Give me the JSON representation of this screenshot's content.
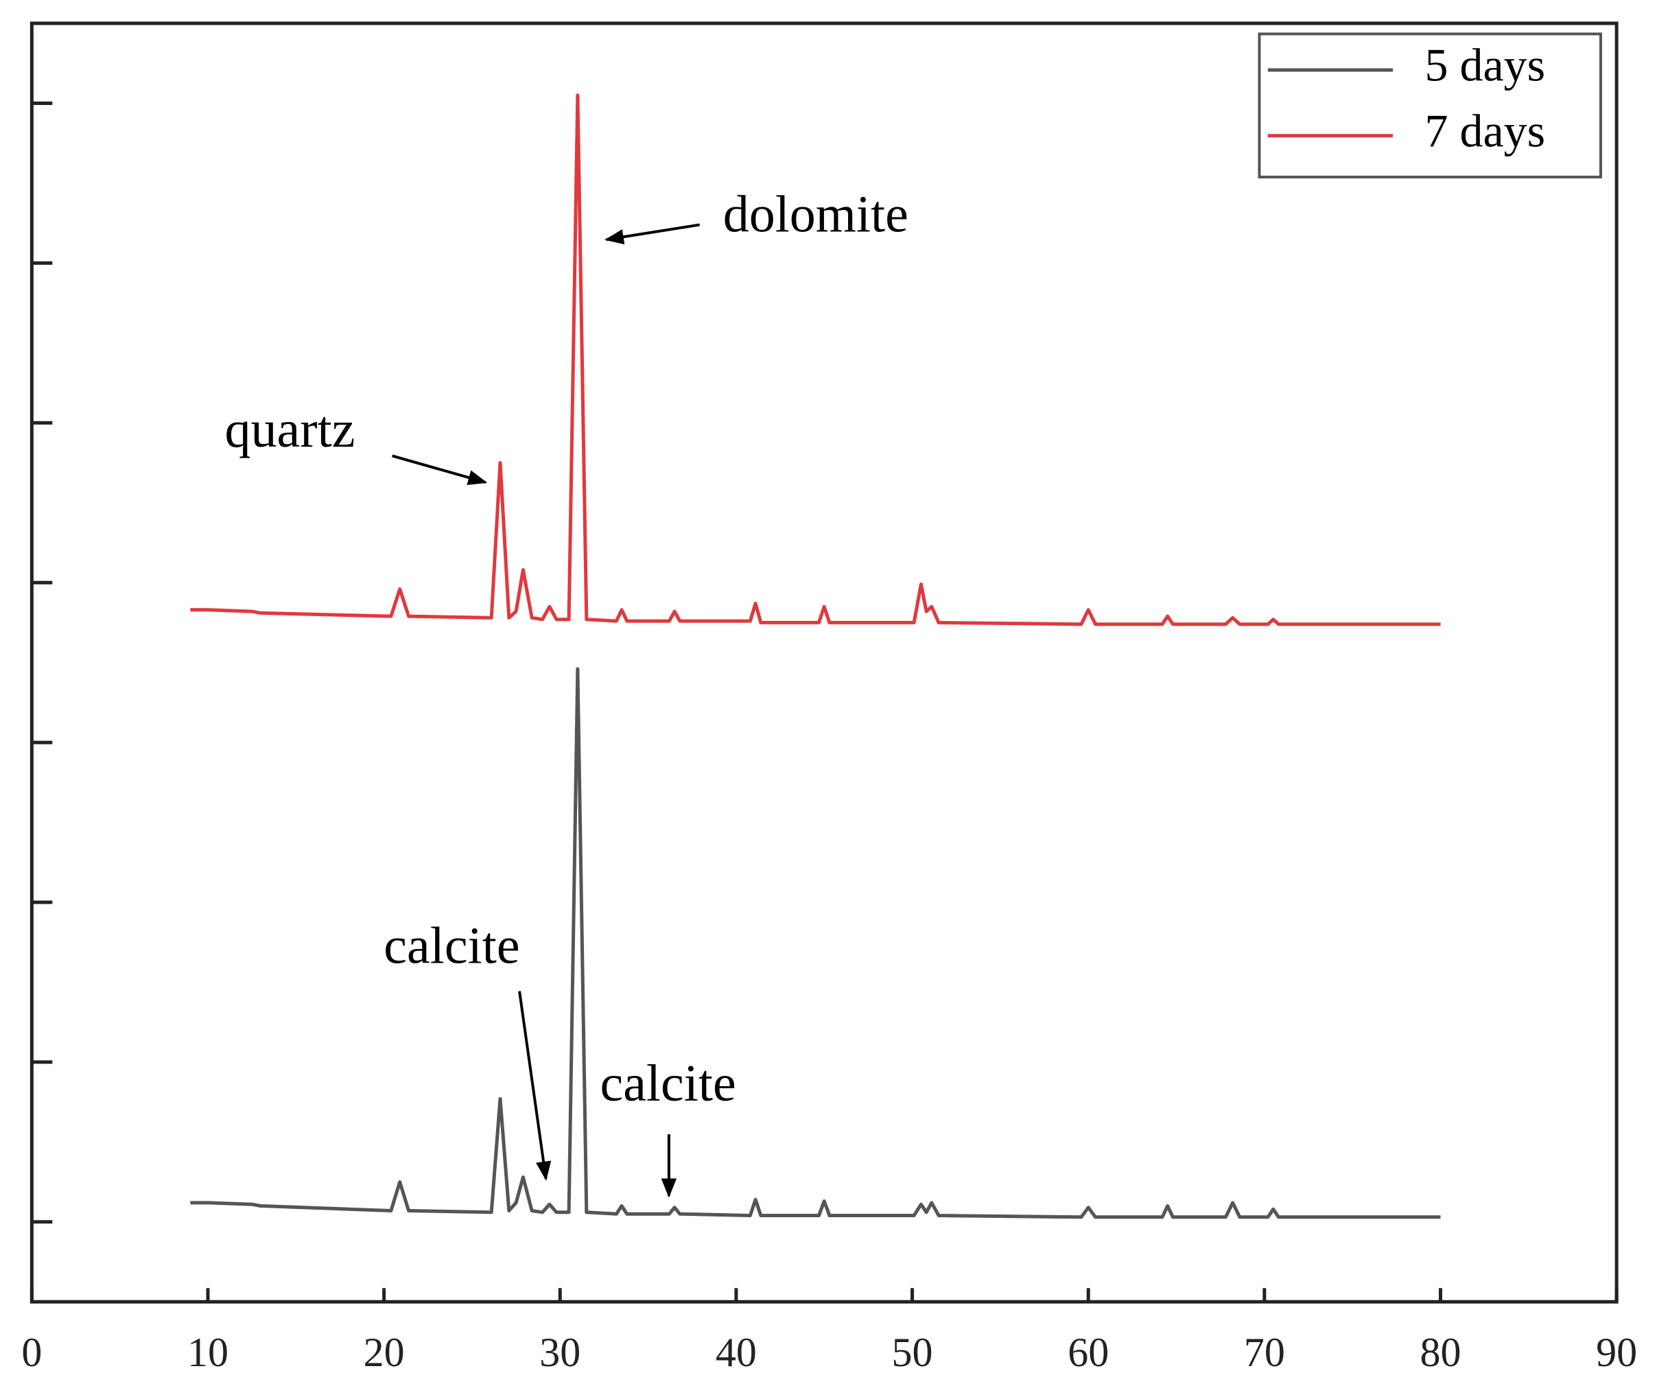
{
  "chart_data": {
    "type": "line",
    "x": [
      9,
      10,
      12.5,
      13,
      20.4,
      20.9,
      21.4,
      26.1,
      26.6,
      27.1,
      27.5,
      27.9,
      28.4,
      29.0,
      29.4,
      29.8,
      30.5,
      31.0,
      31.5,
      33.2,
      33.5,
      33.8,
      36.2,
      36.5,
      36.8,
      40.8,
      41.1,
      41.4,
      44.7,
      45,
      45.3,
      50.1,
      50.5,
      50.8,
      51.1,
      51.5,
      59.6,
      60,
      60.4,
      64.2,
      64.5,
      64.8,
      67.8,
      68.2,
      68.6,
      70.2,
      70.5,
      70.8,
      80
    ],
    "series": [
      {
        "name": "5 days",
        "color": "#555555",
        "values": [
          0.12,
          0.12,
          0.11,
          0.1,
          0.07,
          0.25,
          0.07,
          0.06,
          0.77,
          0.07,
          0.12,
          0.28,
          0.07,
          0.06,
          0.11,
          0.06,
          0.06,
          3.46,
          0.06,
          0.05,
          0.1,
          0.05,
          0.05,
          0.09,
          0.05,
          0.04,
          0.14,
          0.04,
          0.04,
          0.13,
          0.04,
          0.04,
          0.11,
          0.06,
          0.12,
          0.04,
          0.03,
          0.09,
          0.03,
          0.03,
          0.1,
          0.03,
          0.03,
          0.12,
          0.03,
          0.03,
          0.08,
          0.03,
          0.03
        ]
      },
      {
        "name": "7 days",
        "color": "#e0393e",
        "values": [
          3.83,
          3.83,
          3.82,
          3.81,
          3.79,
          3.96,
          3.79,
          3.78,
          4.75,
          3.78,
          3.82,
          4.08,
          3.78,
          3.77,
          3.85,
          3.77,
          3.77,
          7.05,
          3.77,
          3.76,
          3.83,
          3.76,
          3.76,
          3.82,
          3.76,
          3.76,
          3.87,
          3.75,
          3.75,
          3.85,
          3.75,
          3.75,
          3.99,
          3.82,
          3.85,
          3.75,
          3.74,
          3.83,
          3.74,
          3.74,
          3.79,
          3.74,
          3.74,
          3.78,
          3.74,
          3.74,
          3.77,
          3.74,
          3.74
        ]
      }
    ],
    "xlim": [
      0,
      90
    ],
    "xticks": [
      0,
      10,
      20,
      30,
      40,
      50,
      60,
      70,
      80,
      90
    ],
    "ylim": [
      -0.5,
      7.5
    ],
    "yticks": [
      0,
      1,
      2,
      3,
      4,
      5,
      6,
      7
    ],
    "ytick_labels": false,
    "legend": "upper right",
    "annotations": [
      "dolomite",
      "quartz",
      "calcite",
      "calcite"
    ]
  }
}
